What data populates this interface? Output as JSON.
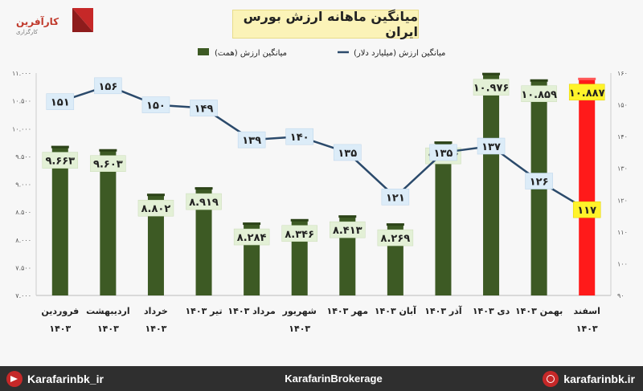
{
  "logo": {
    "brand": "کارآفرین",
    "sub": "کارگزاری"
  },
  "chart_data": {
    "type": "bar",
    "title": "میانگین ماهانه ارزش بورس ایران",
    "categories": [
      "فروردین ۱۴۰۳",
      "اردیبهشت ۱۴۰۳",
      "خرداد ۱۴۰۳",
      "تیر ۱۴۰۳",
      "مرداد ۱۴۰۳",
      "شهریور ۱۴۰۳",
      "مهر ۱۴۰۳",
      "آبان ۱۴۰۳",
      "آذر ۱۴۰۳",
      "دی ۱۴۰۳",
      "بهمن ۱۴۰۳",
      "اسفند ۱۴۰۳"
    ],
    "category_lines": [
      [
        "فروردین",
        "۱۴۰۳"
      ],
      [
        "اردیبهشت",
        "۱۴۰۳"
      ],
      [
        "خرداد",
        "۱۴۰۳"
      ],
      [
        "تیر ۱۴۰۳"
      ],
      [
        "مرداد ۱۴۰۳"
      ],
      [
        "شهریور",
        "۱۴۰۳"
      ],
      [
        "مهر ۱۴۰۳"
      ],
      [
        "آبان ۱۴۰۳"
      ],
      [
        "آذر ۱۴۰۳"
      ],
      [
        "دی ۱۴۰۳"
      ],
      [
        "بهمن ۱۴۰۳"
      ],
      [
        "اسفند",
        "۱۴۰۳"
      ]
    ],
    "series": [
      {
        "name": "میانگین ارزش (همت)",
        "type": "bar",
        "axis": "left",
        "color": "#3d5a24",
        "highlight_color": "#ff1a1a",
        "values": [
          9663,
          9603,
          8802,
          8919,
          8284,
          8346,
          8413,
          8269,
          9742,
          10976,
          10859,
          10887
        ],
        "labels": [
          "۹.۶۶۳",
          "۹.۶۰۳",
          "۸.۸۰۲",
          "۸.۹۱۹",
          "۸.۲۸۴",
          "۸.۳۴۶",
          "۸.۴۱۳",
          "۸.۲۶۹",
          "۹.۷۴۲",
          "۱۰.۹۷۶",
          "۱۰.۸۵۹",
          "۱۰.۸۸۷"
        ]
      },
      {
        "name": "میانگین ارزش (میلیارد دلار)",
        "type": "line",
        "axis": "right",
        "color": "#2b4a6b",
        "values": [
          151,
          156,
          150,
          149,
          139,
          140,
          135,
          121,
          135,
          137,
          126,
          117
        ],
        "labels": [
          "۱۵۱",
          "۱۵۶",
          "۱۵۰",
          "۱۴۹",
          "۱۳۹",
          "۱۴۰",
          "۱۳۵",
          "۱۲۱",
          "۱۳۵",
          "۱۳۷",
          "۱۲۶",
          "۱۱۷"
        ]
      }
    ],
    "ylim_left": [
      7000,
      11000
    ],
    "yticks_left": [
      "۷.۰۰۰",
      "۷.۵۰۰",
      "۸.۰۰۰",
      "۸.۵۰۰",
      "۹.۰۰۰",
      "۹.۵۰۰",
      "۱۰.۰۰۰",
      "۱۰.۵۰۰",
      "۱۱.۰۰۰"
    ],
    "ylim_right": [
      90,
      160
    ],
    "yticks_right": [
      "۹۰",
      "۱۰۰",
      "۱۱۰",
      "۱۲۰",
      "۱۳۰",
      "۱۴۰",
      "۱۵۰",
      "۱۶۰"
    ],
    "legend_position": "top-center",
    "grid": false
  },
  "footer": {
    "left": "Karafarinbk_ir",
    "center": "KarafarinBrokerage",
    "right": "karafarinbk.ir"
  }
}
